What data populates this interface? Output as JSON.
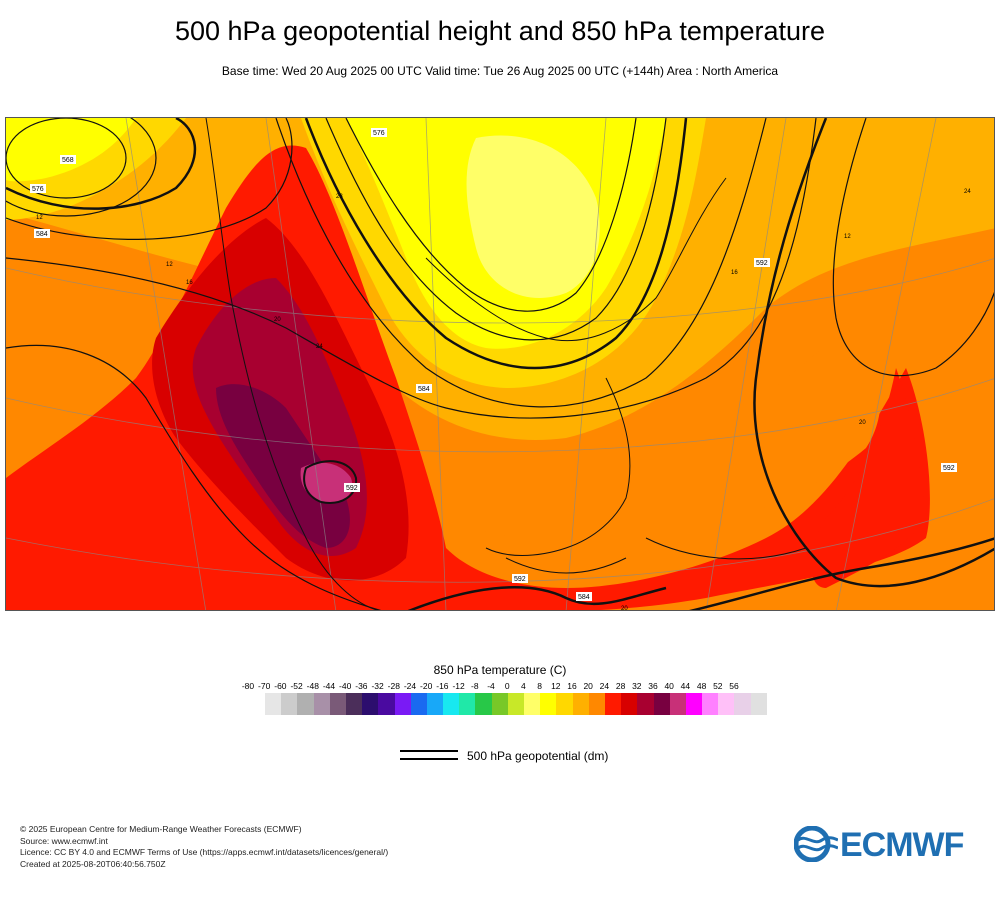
{
  "header": {
    "title": "500 hPa geopotential height and 850 hPa temperature",
    "subtitle": "Base time: Wed 20 Aug 2025 00 UTC Valid time: Tue 26 Aug 2025 00 UTC (+144h) Area : North America"
  },
  "map": {
    "contour_labels": [
      "568",
      "576",
      "584",
      "592",
      "584",
      "592",
      "584",
      "592",
      "592",
      "576"
    ],
    "temp_labels": [
      "12",
      "12",
      "16",
      "20",
      "24",
      "28",
      "12",
      "16",
      "20",
      "20",
      "24"
    ]
  },
  "colorbar": {
    "title": "850 hPa temperature (C)",
    "ticks": [
      "-80",
      "-70",
      "-60",
      "-52",
      "-48",
      "-44",
      "-40",
      "-36",
      "-32",
      "-28",
      "-24",
      "-20",
      "-16",
      "-12",
      "-8",
      "-4",
      "0",
      "4",
      "8",
      "12",
      "16",
      "20",
      "24",
      "28",
      "32",
      "36",
      "40",
      "44",
      "48",
      "52",
      "56"
    ],
    "colors": [
      "#e6e6e6",
      "#cccccc",
      "#b0b0b0",
      "#a890a8",
      "#7a5a78",
      "#4b2e5a",
      "#2c0e6e",
      "#4a0aa0",
      "#7a1af5",
      "#1a6af0",
      "#18a8f8",
      "#18e8f0",
      "#20e8a8",
      "#28c848",
      "#78c828",
      "#c8e828",
      "#ffff68",
      "#ffff00",
      "#ffd800",
      "#ffb000",
      "#ff8800",
      "#ff1a00",
      "#d80000",
      "#a80030",
      "#780040",
      "#c83078",
      "#ff00ff",
      "#ff80ff",
      "#ffc0f8",
      "#e8d0e8",
      "#e0e0e0"
    ]
  },
  "legend": {
    "label": "500 hPa geopotential (dm)"
  },
  "credits": {
    "line1": "© 2025 European Centre for Medium-Range Weather Forecasts (ECMWF)",
    "line2": "Source: www.ecmwf.int",
    "line3": "Licence: CC BY 4.0 and ECMWF Terms of Use (https://apps.ecmwf.int/datasets/licences/general/)",
    "line4": "Created at 2025-08-20T06:40:56.750Z"
  },
  "logo": {
    "text": "ECMWF",
    "color": "#1f6fb2"
  }
}
